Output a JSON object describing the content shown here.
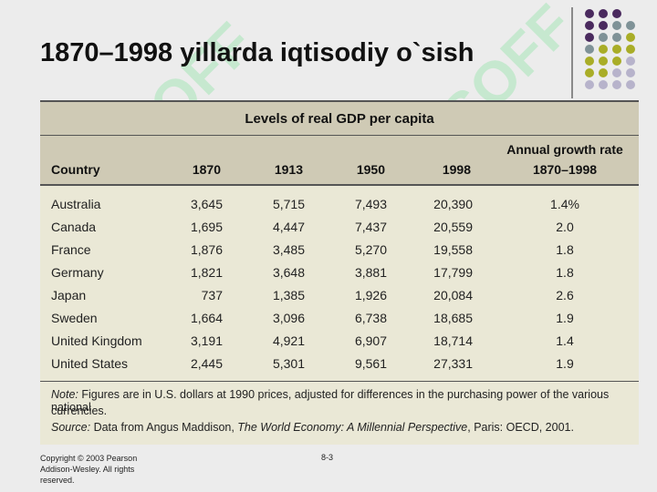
{
  "slide": {
    "title": "1870–1998 yillarda iqtisodiy o`sish",
    "footer": "Copyright © 2003 Pearson Addison-Wesley. All rights reserved.",
    "page_number": "8-3",
    "watermark_text": "SOFF"
  },
  "table": {
    "caption": "Levels of real GDP per capita",
    "headers": {
      "country": "Country",
      "y1870": "1870",
      "y1913": "1913",
      "y1950": "1950",
      "y1998": "1998",
      "growth_line1": "Annual growth rate",
      "growth_line2": "1870–1998"
    },
    "rows": [
      {
        "country": "Australia",
        "y1870": "3,645",
        "y1913": "5,715",
        "y1950": "7,493",
        "y1998": "20,390",
        "growth": "1.4%"
      },
      {
        "country": "Canada",
        "y1870": "1,695",
        "y1913": "4,447",
        "y1950": "7,437",
        "y1998": "20,559",
        "growth": "2.0"
      },
      {
        "country": "France",
        "y1870": "1,876",
        "y1913": "3,485",
        "y1950": "5,270",
        "y1998": "19,558",
        "growth": "1.8"
      },
      {
        "country": "Germany",
        "y1870": "1,821",
        "y1913": "3,648",
        "y1950": "3,881",
        "y1998": "17,799",
        "growth": "1.8"
      },
      {
        "country": "Japan",
        "y1870": "737",
        "y1913": "1,385",
        "y1950": "1,926",
        "y1998": "20,084",
        "growth": "2.6"
      },
      {
        "country": "Sweden",
        "y1870": "1,664",
        "y1913": "3,096",
        "y1950": "6,738",
        "y1998": "18,685",
        "growth": "1.9"
      },
      {
        "country": "United Kingdom",
        "y1870": "3,191",
        "y1913": "4,921",
        "y1950": "6,907",
        "y1998": "18,714",
        "growth": "1.4"
      },
      {
        "country": "United States",
        "y1870": "2,445",
        "y1913": "5,301",
        "y1950": "9,561",
        "y1998": "27,331",
        "growth": "1.9"
      }
    ],
    "note_label": "Note:",
    "note_text": " Figures are in U.S. dollars at 1990 prices, adjusted for differences in the purchasing power of the various national",
    "note_text2": "currencies.",
    "source_label": "Source:",
    "source_text": " Data from Angus Maddison, ",
    "source_book": "The World Economy: A Millennial Perspective",
    "source_tail": ", Paris: OECD, 2001."
  },
  "colors": {
    "dots_purple": "#4a2a5e",
    "dots_gray": "#7f9297",
    "dots_olive": "#a9ad27",
    "dots_lavender": "#b7b3cb",
    "table_bg": "#eae8d6",
    "header_bg": "#cfcab5"
  }
}
